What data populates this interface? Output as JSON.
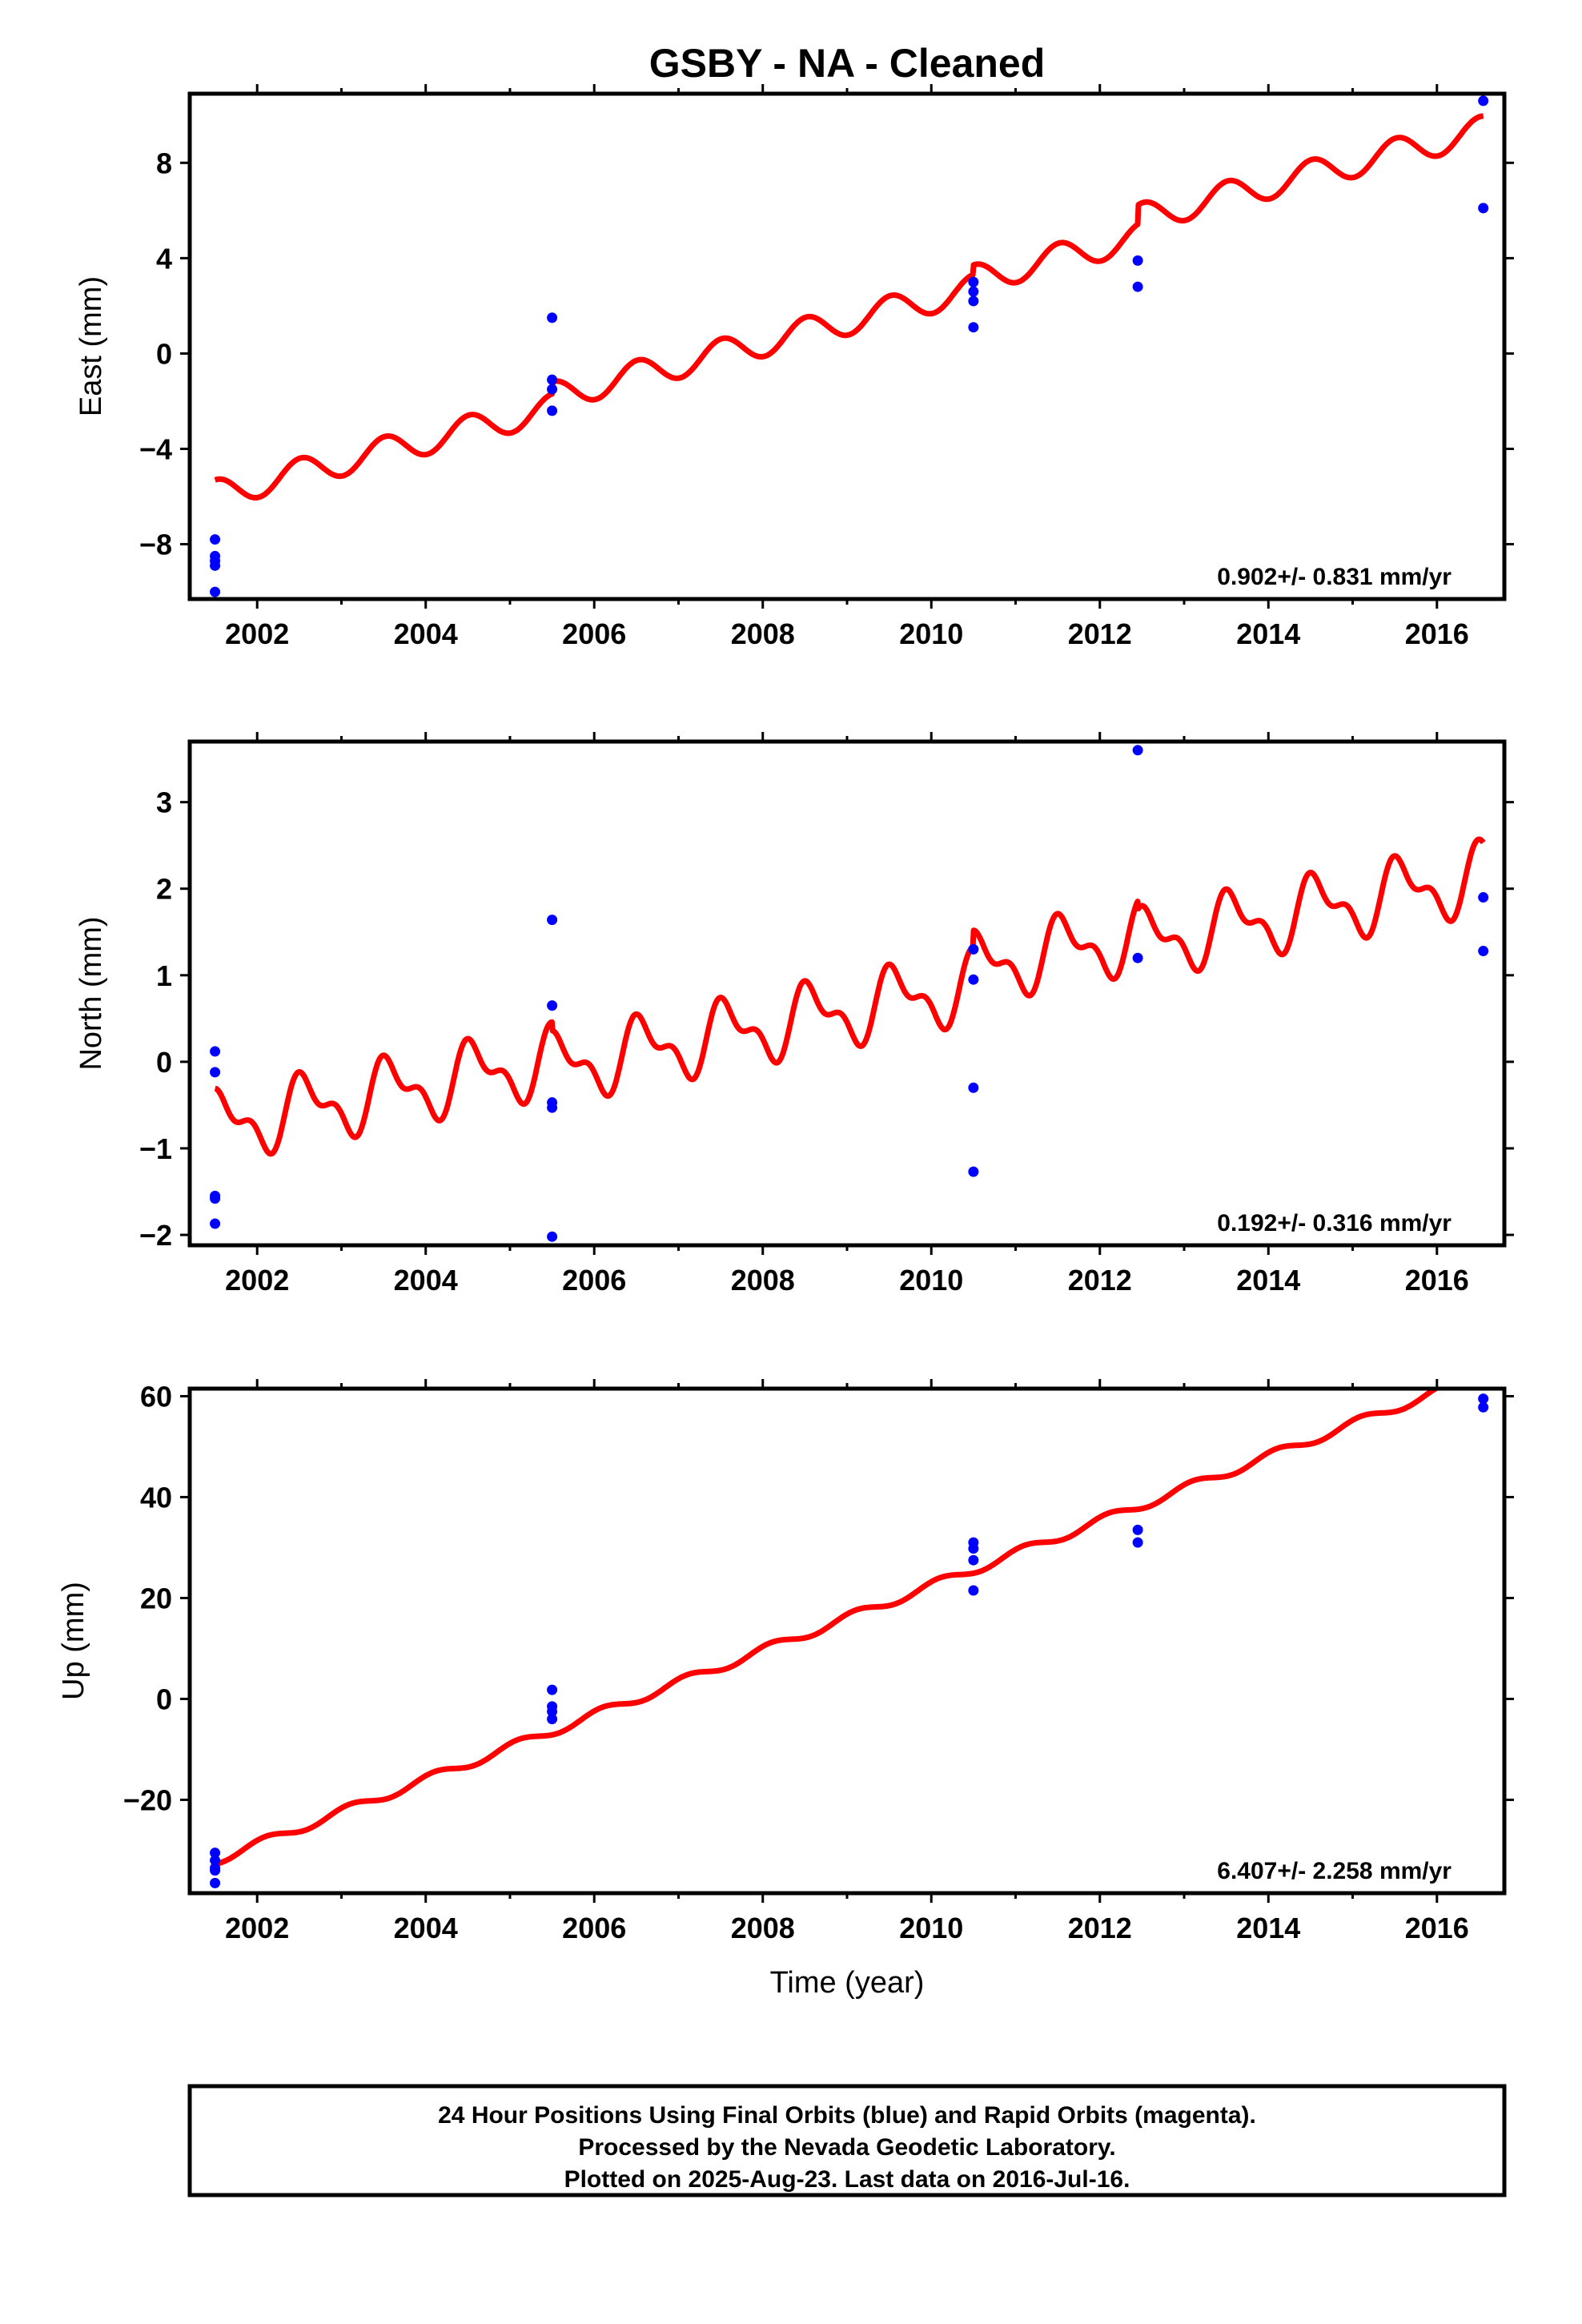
{
  "title": "GSBY  - NA - Cleaned",
  "xlabel": "Time (year)",
  "footer": {
    "line1": "24 Hour Positions Using Final Orbits (blue) and Rapid Orbits (magenta).",
    "line2": "Processed by the Nevada Geodetic Laboratory.",
    "line3": "Plotted on 2025-Aug-23. Last data on 2016-Jul-16."
  },
  "colors": {
    "data": "#0000ff",
    "model": "#ff0000",
    "frame": "#000000"
  },
  "chart_data": [
    {
      "type": "scatter",
      "ylabel": "East (mm)",
      "xlim": [
        2001.2,
        2016.8
      ],
      "ylim": [
        -10.3,
        10.9
      ],
      "xticks": [
        2002,
        2004,
        2006,
        2008,
        2010,
        2012,
        2014,
        2016
      ],
      "yticks": [
        -8,
        -4,
        0,
        4,
        8
      ],
      "rate_text": "0.902+/- 0.831 mm/yr",
      "points": [
        [
          2001.5,
          -7.8
        ],
        [
          2001.5,
          -8.5
        ],
        [
          2001.5,
          -8.7
        ],
        [
          2001.5,
          -8.9
        ],
        [
          2001.5,
          -10.0
        ],
        [
          2005.5,
          1.5
        ],
        [
          2005.5,
          -1.1
        ],
        [
          2005.5,
          -1.5
        ],
        [
          2005.5,
          -2.4
        ],
        [
          2010.5,
          3.0
        ],
        [
          2010.5,
          2.6
        ],
        [
          2010.5,
          2.2
        ],
        [
          2010.5,
          1.1
        ],
        [
          2012.45,
          3.9
        ],
        [
          2012.45,
          2.8
        ],
        [
          2016.55,
          10.6
        ],
        [
          2016.55,
          6.1
        ]
      ],
      "model": {
        "t0": 2001.5,
        "t1": 2016.55,
        "slope": 0.902,
        "intercept_at_t0": -5.9,
        "annual_amp": 0.6,
        "semiannual_amp": 0.0,
        "phase": 4.6,
        "steps": [
          [
            2005.5,
            0.5
          ],
          [
            2010.5,
            0.4
          ],
          [
            2012.45,
            0.8
          ]
        ]
      }
    },
    {
      "type": "scatter",
      "ylabel": "North (mm)",
      "xlim": [
        2001.2,
        2016.8
      ],
      "ylim": [
        -2.12,
        3.7
      ],
      "xticks": [
        2002,
        2004,
        2006,
        2008,
        2010,
        2012,
        2014,
        2016
      ],
      "yticks": [
        -2,
        -1,
        0,
        1,
        2,
        3
      ],
      "rate_text": "0.192+/- 0.316 mm/yr",
      "points": [
        [
          2001.5,
          0.12
        ],
        [
          2001.5,
          -0.12
        ],
        [
          2001.5,
          -1.55
        ],
        [
          2001.5,
          -1.58
        ],
        [
          2001.5,
          -1.87
        ],
        [
          2005.5,
          1.64
        ],
        [
          2005.5,
          0.65
        ],
        [
          2005.5,
          -0.47
        ],
        [
          2005.5,
          -0.53
        ],
        [
          2005.5,
          -2.02
        ],
        [
          2010.5,
          1.3
        ],
        [
          2010.5,
          0.95
        ],
        [
          2010.5,
          -0.3
        ],
        [
          2010.5,
          -1.27
        ],
        [
          2012.45,
          3.6
        ],
        [
          2012.45,
          1.2
        ],
        [
          2016.55,
          1.9
        ],
        [
          2016.55,
          1.28
        ]
      ],
      "model": {
        "t0": 2001.5,
        "t1": 2016.55,
        "slope": 0.192,
        "intercept_at_t0": -0.75,
        "annual_amp": 0.33,
        "semiannual_amp": 0.18,
        "phase": 4.2,
        "steps": [
          [
            2005.5,
            -0.1
          ],
          [
            2010.5,
            0.2
          ],
          [
            2012.45,
            -0.1
          ]
        ]
      }
    },
    {
      "type": "scatter",
      "ylabel": "Up (mm)",
      "xlim": [
        2001.2,
        2016.8
      ],
      "ylim": [
        -38.5,
        61.5
      ],
      "xticks": [
        2002,
        2004,
        2006,
        2008,
        2010,
        2012,
        2014,
        2016
      ],
      "yticks": [
        -20,
        0,
        20,
        40,
        60
      ],
      "rate_text": "6.407+/- 2.258 mm/yr",
      "points": [
        [
          2001.5,
          -30.5
        ],
        [
          2001.5,
          -32.0
        ],
        [
          2001.5,
          -33.5
        ],
        [
          2001.5,
          -34.0
        ],
        [
          2001.5,
          -36.5
        ],
        [
          2005.5,
          1.8
        ],
        [
          2005.5,
          -1.5
        ],
        [
          2005.5,
          -2.5
        ],
        [
          2005.5,
          -4.0
        ],
        [
          2010.5,
          31.0
        ],
        [
          2010.5,
          29.8
        ],
        [
          2010.5,
          27.5
        ],
        [
          2010.5,
          21.5
        ],
        [
          2012.45,
          33.5
        ],
        [
          2012.45,
          31.0
        ],
        [
          2016.55,
          59.5
        ],
        [
          2016.55,
          57.8
        ]
      ],
      "model": {
        "t0": 2001.5,
        "t1": 2016.55,
        "slope": 6.407,
        "intercept_at_t0": -32.0,
        "annual_amp": 0.9,
        "semiannual_amp": 0.0,
        "phase": 1.0,
        "steps": []
      }
    }
  ]
}
